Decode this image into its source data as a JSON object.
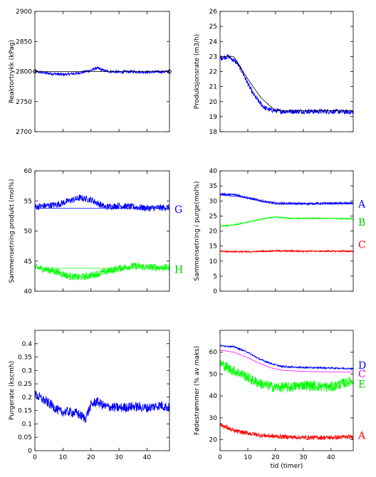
{
  "chart_data": [
    {
      "type": "line",
      "ylabel": "Reaktortrykk (kPag)",
      "xlabel": "",
      "xlim": [
        0,
        48
      ],
      "ylim": [
        2700,
        2900
      ],
      "yticks": [
        "2700",
        "2750",
        "2800",
        "2850",
        "2900"
      ],
      "xticks": [],
      "series": [
        {
          "color": "#0000ff",
          "kind": "noisy",
          "values": [
            [
              0,
              2800
            ],
            [
              5,
              2797
            ],
            [
              10,
              2795
            ],
            [
              15,
              2797
            ],
            [
              20,
              2802
            ],
            [
              22,
              2806
            ],
            [
              25,
              2801
            ],
            [
              30,
              2799
            ],
            [
              35,
              2800
            ],
            [
              40,
              2799
            ],
            [
              48,
              2800
            ]
          ],
          "noise": 2.5
        },
        {
          "color": "#000000",
          "kind": "setpoint",
          "marker": "diamond",
          "values": [
            [
              0,
              2800
            ],
            [
              48,
              2800
            ]
          ]
        }
      ],
      "labels": []
    },
    {
      "type": "line",
      "ylabel": "Produksjonsrate (m3/h)",
      "xlabel": "",
      "xlim": [
        0,
        48
      ],
      "ylim": [
        18,
        26
      ],
      "yticks": [
        "18",
        "19",
        "20",
        "21",
        "22",
        "23",
        "24",
        "25",
        "26"
      ],
      "xticks": [],
      "series": [
        {
          "color": "#0000ff",
          "kind": "noisy",
          "values": [
            [
              0,
              22.9
            ],
            [
              3,
              23.0
            ],
            [
              6,
              22.6
            ],
            [
              8,
              22.0
            ],
            [
              10,
              21.2
            ],
            [
              12,
              20.5
            ],
            [
              14,
              20.0
            ],
            [
              16,
              19.6
            ],
            [
              18,
              19.45
            ],
            [
              22,
              19.35
            ],
            [
              30,
              19.35
            ],
            [
              40,
              19.35
            ],
            [
              48,
              19.3
            ]
          ],
          "noise": 0.16
        },
        {
          "color": "#000000",
          "kind": "setpoint",
          "values": [
            [
              0,
              23.0
            ],
            [
              5,
              23.0
            ],
            [
              10,
              21.5
            ],
            [
              15,
              20.2
            ],
            [
              20,
              19.4
            ],
            [
              48,
              19.4
            ]
          ]
        }
      ],
      "labels": []
    },
    {
      "type": "line",
      "ylabel": "Sammensetning produkt (mol%)",
      "xlabel": "",
      "xlim": [
        0,
        48
      ],
      "ylim": [
        40,
        60
      ],
      "yticks": [
        "40",
        "45",
        "50",
        "55",
        "60"
      ],
      "xticks": [],
      "series": [
        {
          "color": "#0000ff",
          "kind": "noisy",
          "values": [
            [
              0,
              54.0
            ],
            [
              8,
              54.4
            ],
            [
              12,
              55.0
            ],
            [
              16,
              55.5
            ],
            [
              20,
              55.2
            ],
            [
              25,
              54.0
            ],
            [
              30,
              54.2
            ],
            [
              35,
              54.0
            ],
            [
              40,
              53.8
            ],
            [
              48,
              53.9
            ]
          ],
          "noise": 0.55
        },
        {
          "color": "#0000ff",
          "kind": "setpoint",
          "values": [
            [
              0,
              53.8
            ],
            [
              48,
              53.8
            ]
          ]
        },
        {
          "color": "#00ff00",
          "kind": "noisy",
          "values": [
            [
              0,
              44.0
            ],
            [
              8,
              43.2
            ],
            [
              12,
              42.5
            ],
            [
              16,
              42.3
            ],
            [
              20,
              42.6
            ],
            [
              25,
              43.2
            ],
            [
              30,
              43.8
            ],
            [
              35,
              44.2
            ],
            [
              40,
              44.0
            ],
            [
              48,
              43.9
            ]
          ],
          "noise": 0.6
        },
        {
          "color": "#00ff00",
          "kind": "setpoint",
          "values": [
            [
              0,
              43.8
            ],
            [
              48,
              43.8
            ]
          ]
        }
      ],
      "labels": [
        {
          "text": "G",
          "color": "#0000ff",
          "y": 53.6
        },
        {
          "text": "H",
          "color": "#00cc00",
          "y": 43.6
        }
      ]
    },
    {
      "type": "line",
      "ylabel": "Sammensetning i purge(mol%)",
      "xlabel": "",
      "xlim": [
        0,
        48
      ],
      "ylim": [
        0,
        40
      ],
      "yticks": [
        "0",
        "5",
        "10",
        "15",
        "20",
        "25",
        "30",
        "35",
        "40"
      ],
      "xticks": [],
      "series": [
        {
          "color": "#0000ff",
          "kind": "noisy",
          "values": [
            [
              0,
              32.3
            ],
            [
              6,
              32.0
            ],
            [
              10,
              31.0
            ],
            [
              15,
              30.0
            ],
            [
              20,
              29.2
            ],
            [
              30,
              29.1
            ],
            [
              40,
              29.2
            ],
            [
              48,
              29.3
            ]
          ],
          "noise": 0.35
        },
        {
          "color": "#0000ff",
          "kind": "setpoint",
          "values": [
            [
              0,
              32.0
            ],
            [
              8,
              31.3
            ],
            [
              15,
              29.8
            ],
            [
              20,
              29.0
            ],
            [
              48,
              29.0
            ]
          ]
        },
        {
          "color": "#00ff00",
          "kind": "noisy",
          "values": [
            [
              0,
              21.6
            ],
            [
              5,
              22.0
            ],
            [
              10,
              23.0
            ],
            [
              15,
              24.0
            ],
            [
              20,
              24.7
            ],
            [
              25,
              24.2
            ],
            [
              35,
              24.2
            ],
            [
              48,
              24.1
            ]
          ],
          "noise": 0.18
        },
        {
          "color": "#ff0000",
          "kind": "noisy",
          "values": [
            [
              0,
              13.2
            ],
            [
              10,
              13.1
            ],
            [
              20,
              13.4
            ],
            [
              30,
              13.3
            ],
            [
              48,
              13.3
            ]
          ],
          "noise": 0.25
        }
      ],
      "labels": [
        {
          "text": "A",
          "color": "#0000ff",
          "y": 29.0
        },
        {
          "text": "B",
          "color": "#00cc00",
          "y": 23.0
        },
        {
          "text": "C",
          "color": "#ff0000",
          "y": 15.5
        }
      ]
    },
    {
      "type": "line",
      "ylabel": "Purgerate (kscmh)",
      "xlabel": "",
      "xlim": [
        0,
        48
      ],
      "ylim": [
        0,
        0.45
      ],
      "yticks": [
        "0",
        "0.05",
        "0.1",
        "0.15",
        "0.2",
        "0.25",
        "0.3",
        "0.35",
        "0.4"
      ],
      "xticks": [
        "0",
        "10",
        "20",
        "30",
        "40"
      ],
      "series": [
        {
          "color": "#0000ff",
          "kind": "noisy",
          "values": [
            [
              0,
              0.21
            ],
            [
              3,
              0.19
            ],
            [
              6,
              0.17
            ],
            [
              9,
              0.145
            ],
            [
              12,
              0.145
            ],
            [
              15,
              0.14
            ],
            [
              18,
              0.12
            ],
            [
              20,
              0.17
            ],
            [
              22,
              0.185
            ],
            [
              25,
              0.165
            ],
            [
              30,
              0.16
            ],
            [
              35,
              0.165
            ],
            [
              40,
              0.16
            ],
            [
              45,
              0.17
            ],
            [
              48,
              0.16
            ]
          ],
          "noise": 0.018
        }
      ],
      "labels": []
    },
    {
      "type": "line",
      "ylabel": "Fødestrømmer (% av  maks)",
      "xlabel": "tid (timer)",
      "xlim": [
        0,
        48
      ],
      "ylim": [
        15,
        70
      ],
      "yticks": [
        "20",
        "30",
        "40",
        "50",
        "60"
      ],
      "xticks": [
        "0",
        "10",
        "20",
        "30",
        "40"
      ],
      "series": [
        {
          "color": "#0000ff",
          "kind": "noisy",
          "values": [
            [
              0,
              63
            ],
            [
              5,
              62.5
            ],
            [
              10,
              60
            ],
            [
              14,
              57
            ],
            [
              18,
              55
            ],
            [
              22,
              53.5
            ],
            [
              30,
              53
            ],
            [
              40,
              52.8
            ],
            [
              48,
              52.5
            ]
          ],
          "noise": 0.35
        },
        {
          "color": "#ff00ff",
          "kind": "smooth",
          "values": [
            [
              0,
              61
            ],
            [
              5,
              60
            ],
            [
              10,
              57.5
            ],
            [
              14,
              55
            ],
            [
              18,
              53
            ],
            [
              22,
              51.8
            ],
            [
              30,
              51.2
            ],
            [
              40,
              51
            ],
            [
              48,
              51
            ]
          ]
        },
        {
          "color": "#00ff00",
          "kind": "noisy",
          "values": [
            [
              0,
              55
            ],
            [
              4,
              52
            ],
            [
              8,
              50
            ],
            [
              12,
              47
            ],
            [
              16,
              45
            ],
            [
              20,
              44
            ],
            [
              25,
              44
            ],
            [
              30,
              45
            ],
            [
              35,
              44.5
            ],
            [
              40,
              44
            ],
            [
              45,
              46
            ],
            [
              48,
              47
            ]
          ],
          "noise": 2.4
        },
        {
          "color": "#ff0000",
          "kind": "noisy",
          "values": [
            [
              0,
              27
            ],
            [
              5,
              24
            ],
            [
              10,
              23
            ],
            [
              15,
              22
            ],
            [
              20,
              21.5
            ],
            [
              30,
              21
            ],
            [
              40,
              21
            ],
            [
              48,
              21.3
            ]
          ],
          "noise": 1.0
        }
      ],
      "labels": [
        {
          "text": "D",
          "color": "#0000ff",
          "y": 54.0
        },
        {
          "text": "C",
          "color": "#cc00cc",
          "y": 50.2
        },
        {
          "text": "E",
          "color": "#00cc00",
          "y": 45.5
        },
        {
          "text": "A",
          "color": "#ff0000",
          "y": 22.0
        }
      ]
    }
  ]
}
